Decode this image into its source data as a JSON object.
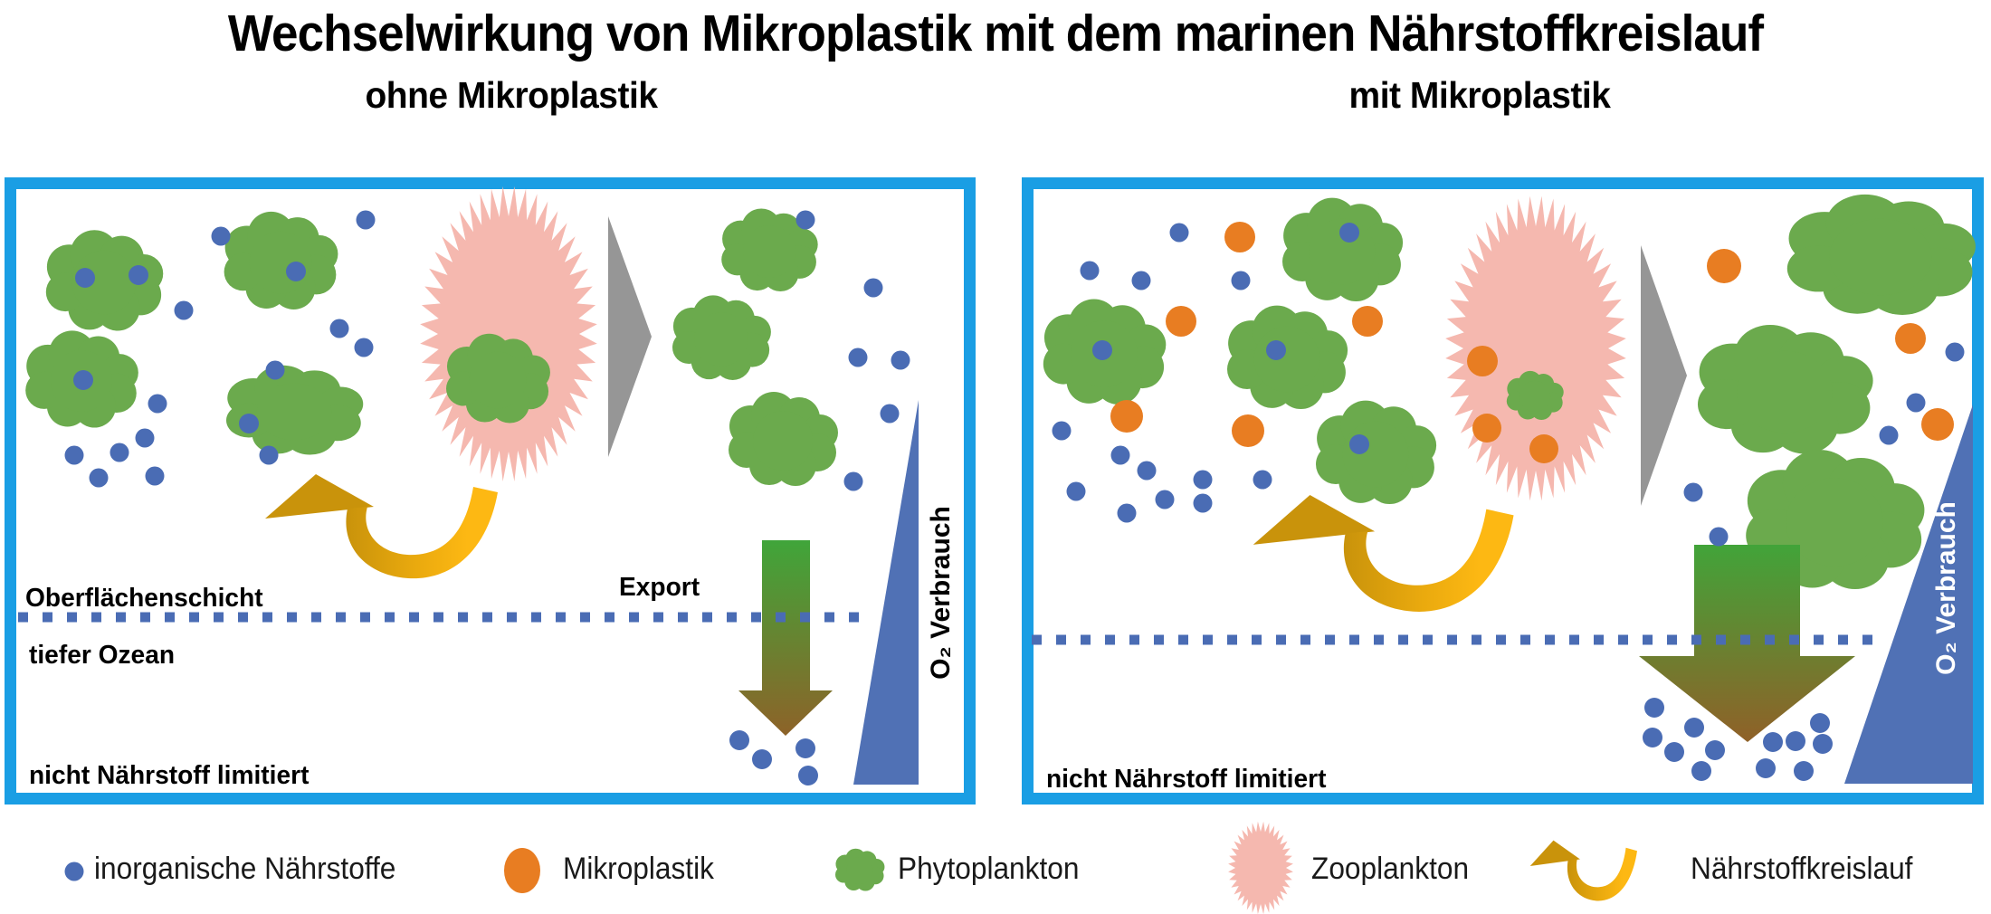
{
  "title": "Wechselwirkung von Mikroplastik mit dem marinen Nährstoffkreislauf",
  "panels": {
    "left": {
      "subtitle": "ohne Mikroplastik",
      "surface_label": "Oberflächenschicht",
      "deep_label": "tiefer Ozean",
      "status_label": "nicht Nährstoff limitiert",
      "export_label": "Export",
      "o2_label": "O₂ Verbrauch"
    },
    "right": {
      "subtitle": "mit Mikroplastik",
      "status_label": "nicht Nährstoff limitiert",
      "o2_label": "O₂ Verbrauch"
    }
  },
  "legend": {
    "items": [
      {
        "icon": "nutrient-dot-icon",
        "label": "inorganische Nährstoffe"
      },
      {
        "icon": "microplastic-icon",
        "label": "Mikroplastik"
      },
      {
        "icon": "phytoplankton-icon",
        "label": "Phytoplankton"
      },
      {
        "icon": "zooplankton-icon",
        "label": "Zooplankton"
      },
      {
        "icon": "nutrient-cycle-arrow-icon",
        "label": "Nährstoffkreislauf"
      }
    ]
  },
  "colors": {
    "panel_border": "#1A9EE4",
    "nutrient_blue": "#4A6CB4",
    "microplastic_orange": "#E87D22",
    "phytoplankton_green": "#6BAA4D",
    "zooplankton_pink": "#F5B8AF",
    "cycle_gold_dark": "#C9930B",
    "cycle_gold_bright": "#FDB813",
    "export_green": "#3FA63A",
    "export_brown": "#8F6128",
    "grazing_gray": "#969696",
    "o2_triangle_blue": "#5071B5"
  }
}
